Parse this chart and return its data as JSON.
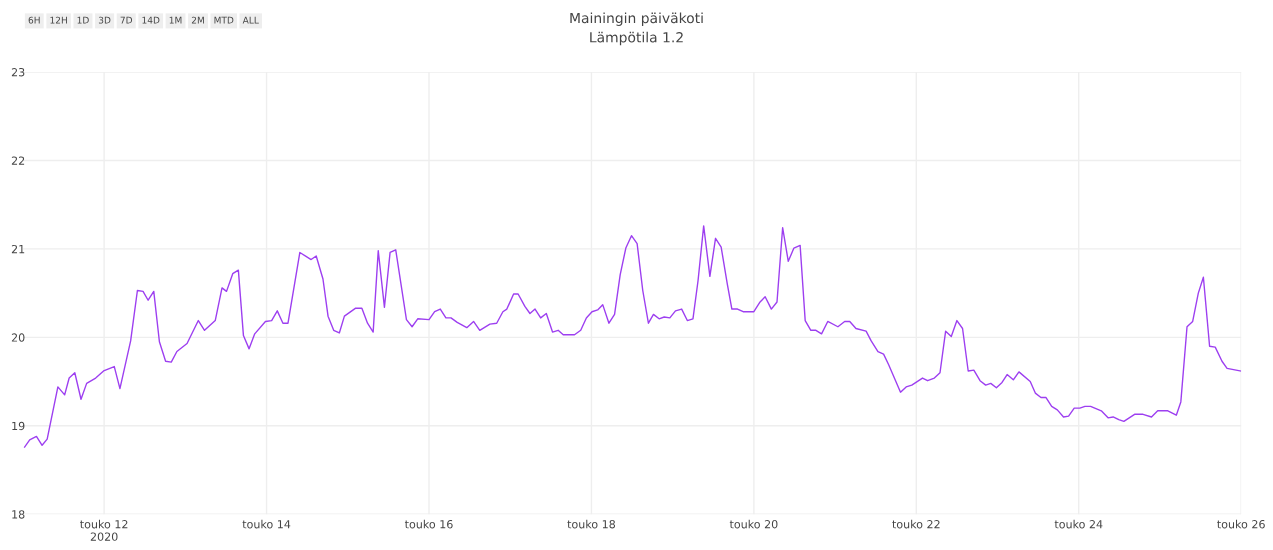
{
  "chart_data": {
    "type": "line",
    "title": "Mainingin päiväkoti",
    "subtitle": "Lämpötila 1.2",
    "annotations": [
      "6H",
      "12H",
      "1D",
      "3D",
      "7D",
      "14D",
      "1M",
      "2M",
      "MTD",
      "ALL"
    ],
    "x": [
      "2020-05-11T00:30",
      "2020-05-11T02:00",
      "2020-05-11T04:00",
      "2020-05-11T05:40",
      "2020-05-11T07:10",
      "2020-05-11T10:20",
      "2020-05-11T12:20",
      "2020-05-11T13:40",
      "2020-05-11T15:20",
      "2020-05-11T17:10",
      "2020-05-11T18:50",
      "2020-05-11T21:30",
      "2020-05-11T23:50",
      "2020-05-12T03:00",
      "2020-05-12T04:40",
      "2020-05-12T07:50",
      "2020-05-12T09:50",
      "2020-05-12T11:30",
      "2020-05-12T13:00",
      "2020-05-12T14:40",
      "2020-05-12T16:20",
      "2020-05-12T18:10",
      "2020-05-12T19:50",
      "2020-05-12T21:30",
      "2020-05-13T00:30",
      "2020-05-13T03:50",
      "2020-05-13T05:40",
      "2020-05-13T08:50",
      "2020-05-13T10:50",
      "2020-05-13T12:10",
      "2020-05-13T14:00",
      "2020-05-13T15:40",
      "2020-05-13T17:10",
      "2020-05-13T18:50",
      "2020-05-13T20:30",
      "2020-05-13T23:40",
      "2020-05-14T01:30",
      "2020-05-14T03:10",
      "2020-05-14T04:50",
      "2020-05-14T06:20",
      "2020-05-14T09:50",
      "2020-05-14T13:10",
      "2020-05-14T14:40",
      "2020-05-14T16:40",
      "2020-05-14T18:10",
      "2020-05-14T19:50",
      "2020-05-14T21:30",
      "2020-05-14T23:00",
      "2020-05-15T02:20",
      "2020-05-15T04:10",
      "2020-05-15T05:50",
      "2020-05-15T07:30",
      "2020-05-15T09:00",
      "2020-05-15T10:50",
      "2020-05-15T12:30",
      "2020-05-15T14:10",
      "2020-05-15T17:20",
      "2020-05-15T19:00",
      "2020-05-15T20:40",
      "2020-05-16T00:00",
      "2020-05-16T01:40",
      "2020-05-16T03:20",
      "2020-05-16T05:00",
      "2020-05-16T06:30",
      "2020-05-16T08:20",
      "2020-05-16T11:10",
      "2020-05-16T13:10",
      "2020-05-16T15:00",
      "2020-05-16T18:00",
      "2020-05-16T20:00",
      "2020-05-16T21:50",
      "2020-05-16T23:00",
      "2020-05-17T01:00",
      "2020-05-17T02:20",
      "2020-05-17T04:20",
      "2020-05-17T05:50",
      "2020-05-17T07:20",
      "2020-05-17T09:00",
      "2020-05-17T10:40",
      "2020-05-17T12:30",
      "2020-05-17T14:10",
      "2020-05-17T15:40",
      "2020-05-17T19:00",
      "2020-05-17T20:50",
      "2020-05-17T22:30",
      "2020-05-18T00:10",
      "2020-05-18T01:50",
      "2020-05-18T03:20",
      "2020-05-18T05:10",
      "2020-05-18T06:50",
      "2020-05-18T08:30",
      "2020-05-18T10:10",
      "2020-05-18T11:50",
      "2020-05-18T13:30",
      "2020-05-18T15:10",
      "2020-05-18T16:50",
      "2020-05-18T18:20",
      "2020-05-18T20:00",
      "2020-05-18T21:30",
      "2020-05-18T23:10",
      "2020-05-19T00:50",
      "2020-05-19T02:40",
      "2020-05-19T04:20",
      "2020-05-19T06:00",
      "2020-05-19T07:30",
      "2020-05-19T09:10",
      "2020-05-19T11:00",
      "2020-05-19T12:40",
      "2020-05-19T14:20",
      "2020-05-19T16:10",
      "2020-05-19T17:30",
      "2020-05-19T19:10",
      "2020-05-19T20:50",
      "2020-05-20T00:00",
      "2020-05-20T01:50",
      "2020-05-20T03:20",
      "2020-05-20T05:10",
      "2020-05-20T06:50",
      "2020-05-20T08:30",
      "2020-05-20T10:10",
      "2020-05-20T11:50",
      "2020-05-20T13:40",
      "2020-05-20T15:10",
      "2020-05-20T16:50",
      "2020-05-20T18:20",
      "2020-05-20T20:00",
      "2020-05-20T21:50",
      "2020-05-21T00:50",
      "2020-05-21T02:50",
      "2020-05-21T04:20",
      "2020-05-21T06:10",
      "2020-05-21T09:10",
      "2020-05-21T10:40",
      "2020-05-21T12:40",
      "2020-05-21T14:20",
      "2020-05-21T15:50",
      "2020-05-21T19:20",
      "2020-05-21T21:00",
      "2020-05-21T22:40",
      "2020-05-22T01:50",
      "2020-05-22T03:20",
      "2020-05-22T05:20",
      "2020-05-22T07:00",
      "2020-05-22T08:40",
      "2020-05-22T10:20",
      "2020-05-22T12:00",
      "2020-05-22T13:40",
      "2020-05-22T15:20",
      "2020-05-22T17:00",
      "2020-05-22T18:50",
      "2020-05-22T20:30",
      "2020-05-22T22:00",
      "2020-05-22T23:40",
      "2020-05-23T01:20",
      "2020-05-23T02:50",
      "2020-05-23T04:40",
      "2020-05-23T06:20",
      "2020-05-23T09:40",
      "2020-05-23T11:10",
      "2020-05-23T12:50",
      "2020-05-23T14:20",
      "2020-05-23T16:00",
      "2020-05-23T17:40",
      "2020-05-23T19:30",
      "2020-05-23T21:00",
      "2020-05-23T22:40",
      "2020-05-24T00:20",
      "2020-05-24T01:50",
      "2020-05-24T03:30",
      "2020-05-24T06:40",
      "2020-05-24T08:40",
      "2020-05-24T10:10",
      "2020-05-24T11:50",
      "2020-05-24T13:20",
      "2020-05-24T16:30",
      "2020-05-24T19:00",
      "2020-05-24T21:30",
      "2020-05-24T23:20",
      "2020-05-25T02:20",
      "2020-05-25T04:50",
      "2020-05-25T06:10",
      "2020-05-25T08:00",
      "2020-05-25T09:40",
      "2020-05-25T11:20",
      "2020-05-25T12:50",
      "2020-05-25T14:40",
      "2020-05-25T16:20",
      "2020-05-25T18:20",
      "2020-05-25T19:50",
      "2020-05-25T23:50"
    ],
    "series": [
      {
        "color": "#9d3ff0",
        "values": [
          18.76,
          18.84,
          18.88,
          18.78,
          18.85,
          19.44,
          19.35,
          19.54,
          19.6,
          19.3,
          19.48,
          19.54,
          19.62,
          19.67,
          19.42,
          19.96,
          20.53,
          20.52,
          20.42,
          20.52,
          19.95,
          19.73,
          19.72,
          19.84,
          19.93,
          20.19,
          20.08,
          20.19,
          20.56,
          20.52,
          20.72,
          20.76,
          20.02,
          19.87,
          20.04,
          20.18,
          20.19,
          20.3,
          20.16,
          20.16,
          20.96,
          20.88,
          20.92,
          20.66,
          20.24,
          20.08,
          20.05,
          20.24,
          20.33,
          20.33,
          20.16,
          20.06,
          20.98,
          20.34,
          20.96,
          20.99,
          20.2,
          20.12,
          20.21,
          20.2,
          20.29,
          20.32,
          20.22,
          20.22,
          20.17,
          20.11,
          20.18,
          20.08,
          20.15,
          20.16,
          20.29,
          20.32,
          20.49,
          20.49,
          20.35,
          20.27,
          20.32,
          20.22,
          20.27,
          20.06,
          20.08,
          20.03,
          20.03,
          20.08,
          20.22,
          20.29,
          20.31,
          20.37,
          20.16,
          20.26,
          20.71,
          21.01,
          21.15,
          21.06,
          20.53,
          20.16,
          20.26,
          20.21,
          20.23,
          20.22,
          20.3,
          20.32,
          20.19,
          20.21,
          20.64,
          21.26,
          20.69,
          21.12,
          21.02,
          20.6,
          20.32,
          20.32,
          20.29,
          20.29,
          20.4,
          20.46,
          20.32,
          20.4,
          21.24,
          20.86,
          21.01,
          21.04,
          20.19,
          20.08,
          20.08,
          20.04,
          20.18,
          20.12,
          20.18,
          20.18,
          20.1,
          20.07,
          19.96,
          19.84,
          19.81,
          19.69,
          19.38,
          19.44,
          19.46,
          19.54,
          19.51,
          19.54,
          19.6,
          20.07,
          20.01,
          20.19,
          20.1,
          19.62,
          19.63,
          19.51,
          19.46,
          19.48,
          19.43,
          19.49,
          19.58,
          19.52,
          19.61,
          19.5,
          19.37,
          19.32,
          19.32,
          19.22,
          19.18,
          19.1,
          19.11,
          19.2,
          19.2,
          19.22,
          19.22,
          19.17,
          19.09,
          19.1,
          19.07,
          19.05,
          19.13,
          19.13,
          19.1,
          19.17,
          19.17,
          19.12,
          19.27,
          20.12,
          20.18,
          20.5,
          20.68,
          19.9,
          19.89,
          19.73,
          19.65,
          19.62
        ]
      }
    ],
    "xlim": [
      "2020-05-11T00:00",
      "2020-05-26T00:00"
    ],
    "xticks": [
      {
        "value": "2020-05-12",
        "label": "touko 12\n2020"
      },
      {
        "value": "2020-05-14",
        "label": "touko 14"
      },
      {
        "value": "2020-05-16",
        "label": "touko 16"
      },
      {
        "value": "2020-05-18",
        "label": "touko 18"
      },
      {
        "value": "2020-05-20",
        "label": "touko 20"
      },
      {
        "value": "2020-05-22",
        "label": "touko 22"
      },
      {
        "value": "2020-05-24",
        "label": "touko 24"
      },
      {
        "value": "2020-05-26",
        "label": "touko 26"
      }
    ],
    "ylim": [
      18,
      23
    ],
    "yticks": [
      18,
      19,
      20,
      21,
      22,
      23
    ],
    "grid": true,
    "legend": false,
    "marker": "none",
    "line_style": "solid"
  }
}
